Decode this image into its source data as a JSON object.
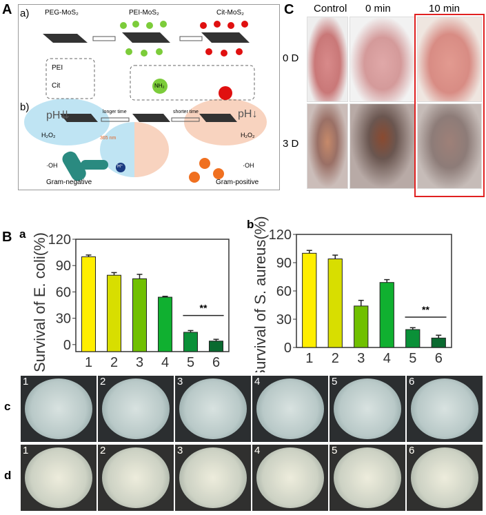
{
  "panel_labels": {
    "A": "A",
    "B": "B",
    "C": "C",
    "a": "a",
    "b": "b",
    "c": "c",
    "d": "d"
  },
  "schematic": {
    "sub_a": "a)",
    "sub_b": "b)",
    "peg": "PEG-MoS₂",
    "pei": "PEI-MoS₂",
    "cit": "Cit-MoS₂",
    "legend_pei": "PEI",
    "legend_cit": "Cit",
    "nh2": "NH₂",
    "longer": "longer time",
    "shorter": "shorter time",
    "ph_left": "pH⇊",
    "ph_right": "pH↓",
    "h2o2_left": "H₂O₂",
    "h2o2_right": "H₂O₂",
    "oh_left": "·OH",
    "oh_right": "·OH",
    "nm": "365 nm",
    "hplus": "H⁺",
    "gram_neg": "Gram-negative",
    "gram_pos": "Gram-positive"
  },
  "wound": {
    "columns": [
      "Control",
      "0 min",
      "10 min"
    ],
    "rows": [
      "0 D",
      "3 D"
    ],
    "highlight_color": "#e02020"
  },
  "chart_data": [
    {
      "type": "bar",
      "ylabel": "Survival of E. coli(%)",
      "categories": [
        "1",
        "2",
        "3",
        "4",
        "5",
        "6"
      ],
      "values": [
        100,
        79,
        75,
        54,
        14,
        4
      ],
      "errors": [
        2,
        3,
        5,
        1,
        2,
        2
      ],
      "ylim": [
        -8,
        120
      ],
      "yticks": [
        0,
        30,
        60,
        90,
        120
      ],
      "annotation": {
        "text": "**",
        "from": "5",
        "to": "6"
      },
      "colors": [
        "#ffee00",
        "#d8de00",
        "#70c000",
        "#10b030",
        "#0a9038",
        "#0a6a30"
      ]
    },
    {
      "type": "bar",
      "ylabel": "Survival of S. aureus(%)",
      "categories": [
        "1",
        "2",
        "3",
        "4",
        "5",
        "6"
      ],
      "values": [
        100,
        94,
        44,
        69,
        19,
        10
      ],
      "errors": [
        3,
        4,
        6,
        3,
        2,
        3
      ],
      "ylim": [
        0,
        120
      ],
      "yticks": [
        0,
        30,
        60,
        90,
        120
      ],
      "annotation": {
        "text": "**",
        "from": "5",
        "to": "6"
      },
      "colors": [
        "#ffee00",
        "#d8de00",
        "#70c000",
        "#10b030",
        "#0a9038",
        "#0a6a30"
      ]
    }
  ],
  "plates": {
    "row_c": [
      "1",
      "2",
      "3",
      "4",
      "5",
      "6"
    ],
    "row_d": [
      "1",
      "2",
      "3",
      "4",
      "5",
      "6"
    ]
  }
}
